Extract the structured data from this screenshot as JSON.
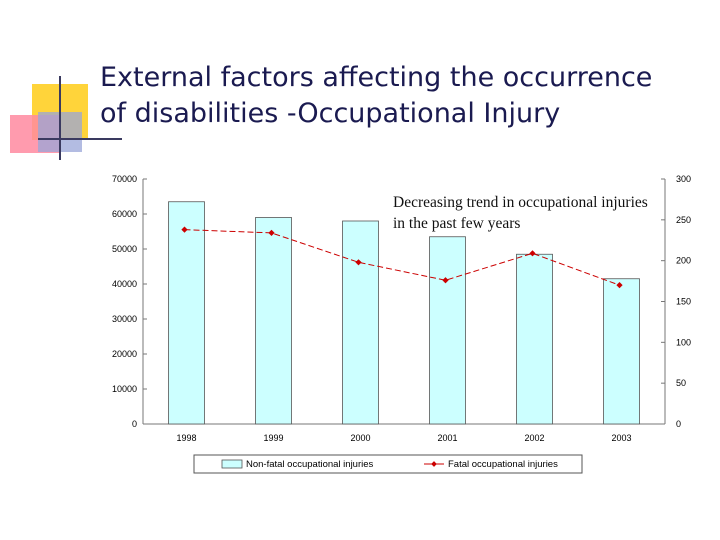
{
  "slide": {
    "title_line1": "External factors affecting the occurrence",
    "title_line2": "of disabilities -Occupational Injury"
  },
  "chart_data": {
    "type": "bar",
    "categories": [
      "1998",
      "1999",
      "2000",
      "2001",
      "2002",
      "2003"
    ],
    "series": [
      {
        "name": "Non-fatal occupational injuries",
        "kind": "bar",
        "axis": "left",
        "color": "#ccffff",
        "values": [
          63500,
          59000,
          58000,
          53500,
          48500,
          41500
        ]
      },
      {
        "name": "Fatal occupational injuries",
        "kind": "line",
        "axis": "right",
        "color": "#cc0000",
        "values": [
          238,
          234,
          198,
          176,
          209,
          170
        ]
      }
    ],
    "ylim_left": [
      0,
      70000
    ],
    "yticks_left": [
      "0",
      "10000",
      "20000",
      "30000",
      "40000",
      "50000",
      "60000",
      "70000"
    ],
    "ylim_right": [
      0,
      300
    ],
    "yticks_right": [
      "0",
      "50",
      "100",
      "150",
      "200",
      "250",
      "300"
    ],
    "annotation": "Decreasing trend in occupational injuries in the past few years",
    "legend_position": "bottom",
    "grid": false
  }
}
